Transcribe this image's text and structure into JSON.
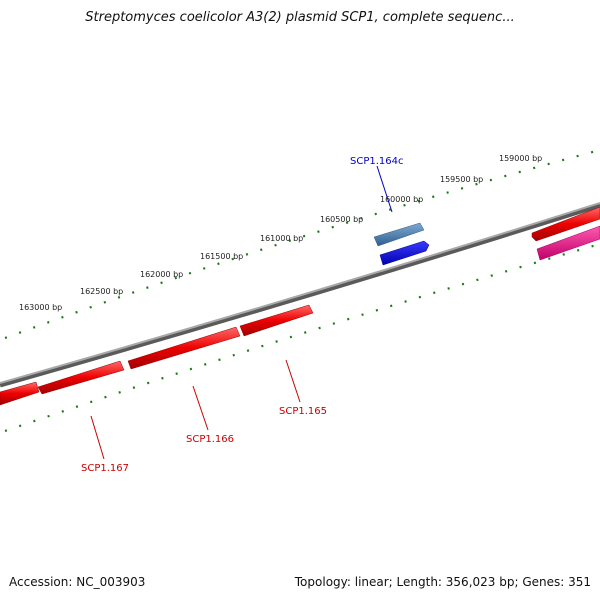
{
  "title": "Streptomyces coelicolor A3(2) plasmid SCP1, complete sequenc...",
  "footer": {
    "accession": "Accession: NC_003903",
    "summary": "Topology: linear; Length: 356,023 bp; Genes: 351"
  },
  "colors": {
    "backbone": "#8a8a8a",
    "ticks": "#1f7a1f",
    "forward_gene": "#ff0000",
    "reverse_gene": "#ff0000",
    "selected_gene_top": "#4a7fb0",
    "selected_gene_bottom": "#0000ee",
    "magenta_gene": "#ee1188",
    "label_red": "#cc0000",
    "label_blue": "#0000cc"
  },
  "scale": {
    "labels": [
      "159000 bp",
      "159500 bp",
      "160000 bp",
      "160500 bp",
      "161000 bp",
      "161500 bp",
      "162000 bp",
      "162500 bp",
      "163000 bp"
    ]
  },
  "genes": [
    {
      "id": "SCP1.164c",
      "label": "SCP1.164c"
    },
    {
      "id": "SCP1.165",
      "label": "SCP1.165"
    },
    {
      "id": "SCP1.166",
      "label": "SCP1.166"
    },
    {
      "id": "SCP1.167",
      "label": "SCP1.167"
    }
  ]
}
